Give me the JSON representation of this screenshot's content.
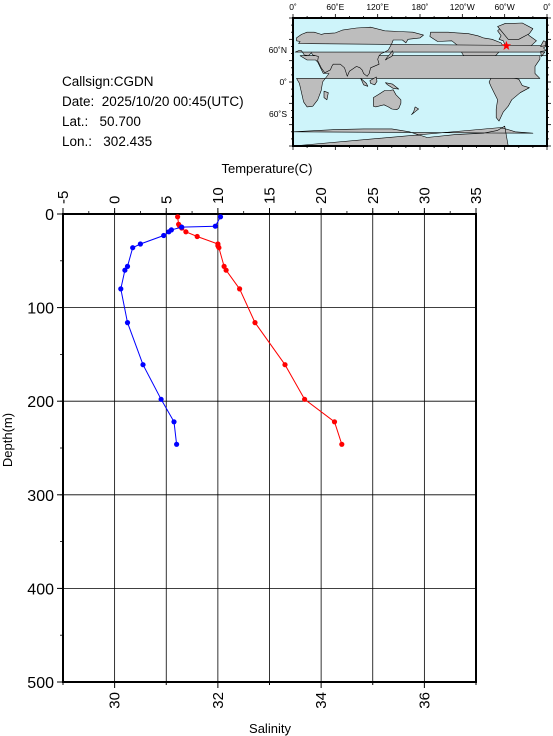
{
  "station": {
    "callsign_label": "Callsign:",
    "callsign": "CGDN",
    "date_label": "Date:",
    "date": "2025/10/20 00:45(UTC)",
    "lat_label": "Lat.:",
    "lat": "50.700",
    "lon_label": "Lon.:",
    "lon": "302.435"
  },
  "map": {
    "top_labels": [
      "0˚",
      "60˚E",
      "120˚E",
      "180˚",
      "120˚W",
      "60˚W",
      "0˚"
    ],
    "left_labels": [
      "60˚N",
      "0˚",
      "60˚S"
    ],
    "ocean_color": "#cef4fa",
    "land_color": "#bdbdbd",
    "marker_color": "#ff0000",
    "marker_lat": 50.7,
    "marker_lon": 302.435
  },
  "chart_data": {
    "type": "line",
    "ylabel": "Depth(m)",
    "ylim": [
      0,
      500
    ],
    "yticks": [
      0,
      100,
      200,
      300,
      400,
      500
    ],
    "y_inverted": true,
    "top_axis": {
      "label": "Temperature(C)",
      "range": [
        -5,
        35
      ],
      "ticks": [
        -5,
        0,
        5,
        10,
        15,
        20,
        25,
        30,
        35
      ]
    },
    "bottom_axis": {
      "label": "Salinity",
      "range": [
        29,
        37
      ],
      "ticks": [
        30,
        32,
        34,
        36
      ]
    },
    "grid": true,
    "series": [
      {
        "name": "",
        "axis": "top",
        "color": "#ff0000",
        "points": [
          {
            "v": 6.1,
            "d": 3
          },
          {
            "v": 6.2,
            "d": 11
          },
          {
            "v": 6.3,
            "d": 13
          },
          {
            "v": 6.5,
            "d": 15
          },
          {
            "v": 6.9,
            "d": 19
          },
          {
            "v": 8.0,
            "d": 24
          },
          {
            "v": 10.0,
            "d": 32
          },
          {
            "v": 10.0,
            "d": 34
          },
          {
            "v": 10.1,
            "d": 36
          },
          {
            "v": 10.6,
            "d": 56
          },
          {
            "v": 10.8,
            "d": 60
          },
          {
            "v": 12.1,
            "d": 80
          },
          {
            "v": 13.6,
            "d": 116
          },
          {
            "v": 16.5,
            "d": 161
          },
          {
            "v": 18.4,
            "d": 198
          },
          {
            "v": 21.3,
            "d": 222
          },
          {
            "v": 22.0,
            "d": 246
          }
        ]
      },
      {
        "name": "",
        "axis": "bottom",
        "color": "#0000ff",
        "points": [
          {
            "s": 32.05,
            "d": 3
          },
          {
            "s": 31.95,
            "d": 13
          },
          {
            "s": 31.3,
            "d": 14
          },
          {
            "s": 31.1,
            "d": 17
          },
          {
            "s": 31.05,
            "d": 19
          },
          {
            "s": 30.95,
            "d": 23
          },
          {
            "s": 30.5,
            "d": 32
          },
          {
            "s": 30.35,
            "d": 36
          },
          {
            "s": 30.25,
            "d": 56
          },
          {
            "s": 30.2,
            "d": 60
          },
          {
            "s": 30.12,
            "d": 80
          },
          {
            "s": 30.25,
            "d": 116
          },
          {
            "s": 30.55,
            "d": 161
          },
          {
            "s": 30.9,
            "d": 198
          },
          {
            "s": 31.15,
            "d": 222
          },
          {
            "s": 31.2,
            "d": 246
          }
        ]
      }
    ]
  }
}
